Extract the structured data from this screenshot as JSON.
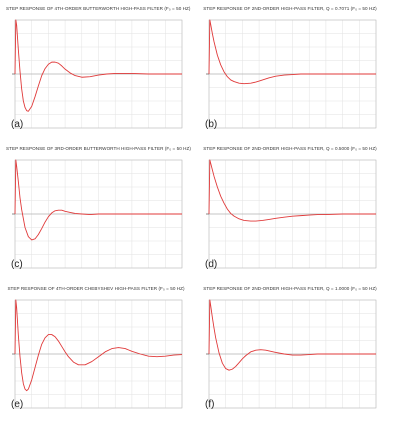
{
  "colors": {
    "curve": "#e03a3a",
    "grid": "#e2e2e2",
    "axis": "#bdbdbd",
    "baseline": "#9a9a9a"
  },
  "chart_data": [
    {
      "type": "line",
      "title": "STEP RESPONSE OF 4TH-ORDER BUTTERWORTH HIGH-PASS FILTER (F₀ = 50 HZ)",
      "label": "(a)",
      "xlabel": "",
      "ylabel": "",
      "ylim": [
        -1,
        1
      ],
      "grid": true,
      "series": [
        {
          "x": [
            0,
            0.5,
            1,
            2,
            3,
            4,
            5,
            6,
            7,
            8,
            10,
            12,
            14,
            16,
            18,
            20,
            22,
            24,
            26,
            28,
            30,
            33,
            36,
            40,
            45,
            50,
            55,
            60,
            70,
            80,
            90,
            100
          ],
          "values": [
            0,
            1.0,
            0.9,
            0.45,
            0.05,
            -0.28,
            -0.5,
            -0.62,
            -0.68,
            -0.69,
            -0.6,
            -0.42,
            -0.22,
            -0.03,
            0.1,
            0.18,
            0.22,
            0.22,
            0.2,
            0.15,
            0.09,
            0.02,
            -0.03,
            -0.06,
            -0.05,
            -0.02,
            0.0,
            0.01,
            0.01,
            0.0,
            0.0,
            0.0
          ]
        }
      ]
    },
    {
      "type": "line",
      "title": "STEP RESPONSE OF 2ND-ORDER HIGH-PASS FILTER, Q = 0.7071 (F₀ = 50 HZ)",
      "label": "(b)",
      "xlabel": "",
      "ylabel": "",
      "ylim": [
        -1,
        1
      ],
      "grid": true,
      "series": [
        {
          "x": [
            0,
            0.5,
            1,
            2,
            3,
            5,
            7,
            9,
            11,
            13,
            15,
            18,
            21,
            25,
            28,
            30,
            33,
            36,
            40,
            45,
            50,
            55,
            60,
            65,
            70,
            80,
            90,
            100
          ],
          "values": [
            0,
            1.0,
            0.92,
            0.75,
            0.6,
            0.35,
            0.17,
            0.04,
            -0.05,
            -0.11,
            -0.14,
            -0.17,
            -0.18,
            -0.17,
            -0.15,
            -0.13,
            -0.1,
            -0.07,
            -0.04,
            -0.02,
            -0.01,
            0.0,
            0.0,
            0.0,
            0.0,
            0.0,
            0.0,
            0.0
          ]
        }
      ]
    },
    {
      "type": "line",
      "title": "STEP RESPONSE OF 3RD-ORDER BUTTERWORTH HIGH-PASS FILTER (F₀ = 50 HZ)",
      "label": "(c)",
      "xlabel": "",
      "ylabel": "",
      "ylim": [
        -1,
        1
      ],
      "grid": true,
      "series": [
        {
          "x": [
            0,
            0.5,
            1,
            2,
            3,
            4,
            6,
            8,
            10,
            12,
            14,
            16,
            18,
            20,
            22,
            24,
            26,
            28,
            30,
            33,
            36,
            40,
            45,
            50,
            55,
            60,
            70,
            80,
            90,
            100
          ],
          "values": [
            0,
            1.0,
            0.88,
            0.6,
            0.3,
            0.08,
            -0.25,
            -0.42,
            -0.48,
            -0.46,
            -0.38,
            -0.27,
            -0.15,
            -0.05,
            0.02,
            0.06,
            0.07,
            0.07,
            0.05,
            0.03,
            0.01,
            0.0,
            -0.01,
            0.0,
            0.0,
            0.0,
            0.0,
            0.0,
            0.0,
            0.0
          ]
        }
      ]
    },
    {
      "type": "line",
      "title": "STEP RESPONSE OF 2ND-ORDER HIGH-PASS FILTER, Q = 0.5000 (F₀ = 50 HZ)",
      "label": "(d)",
      "xlabel": "",
      "ylabel": "",
      "ylim": [
        -1,
        1
      ],
      "grid": true,
      "series": [
        {
          "x": [
            0,
            0.5,
            1,
            2,
            3,
            5,
            7,
            9,
            11,
            13,
            15,
            18,
            21,
            25,
            28,
            32,
            36,
            40,
            45,
            50,
            55,
            60,
            65,
            70,
            80,
            90,
            100
          ],
          "values": [
            0,
            1.0,
            0.94,
            0.82,
            0.7,
            0.5,
            0.33,
            0.2,
            0.09,
            0.01,
            -0.04,
            -0.09,
            -0.12,
            -0.13,
            -0.13,
            -0.12,
            -0.1,
            -0.08,
            -0.06,
            -0.04,
            -0.03,
            -0.02,
            -0.01,
            -0.01,
            0.0,
            0.0,
            0.0
          ]
        }
      ]
    },
    {
      "type": "line",
      "title": "STEP RESPONSE OF 4TH-ORDER CHEBYSHEV HIGH-PASS FILTER (F₀ = 50 HZ)",
      "label": "(e)",
      "xlabel": "",
      "ylabel": "",
      "ylim": [
        -1,
        1
      ],
      "grid": true,
      "series": [
        {
          "x": [
            0,
            0.5,
            1,
            2,
            3,
            4,
            5,
            6,
            7,
            8,
            10,
            12,
            14,
            16,
            18,
            20,
            22,
            24,
            26,
            28,
            30,
            32,
            35,
            38,
            42,
            46,
            50,
            54,
            58,
            62,
            66,
            70,
            75,
            80,
            85,
            90,
            95,
            100
          ],
          "values": [
            0,
            1.0,
            0.85,
            0.35,
            -0.05,
            -0.35,
            -0.55,
            -0.65,
            -0.68,
            -0.65,
            -0.48,
            -0.25,
            -0.02,
            0.18,
            0.3,
            0.36,
            0.36,
            0.32,
            0.24,
            0.14,
            0.04,
            -0.05,
            -0.15,
            -0.2,
            -0.2,
            -0.14,
            -0.05,
            0.04,
            0.1,
            0.12,
            0.1,
            0.05,
            0.0,
            -0.04,
            -0.05,
            -0.04,
            -0.02,
            -0.01
          ]
        }
      ]
    },
    {
      "type": "line",
      "title": "STEP RESPONSE OF 2ND-ORDER HIGH-PASS FILTER, Q = 1.0000 (F₀ = 50 HZ)",
      "label": "(f)",
      "xlabel": "",
      "ylabel": "",
      "ylim": [
        -1,
        1
      ],
      "grid": true,
      "series": [
        {
          "x": [
            0,
            0.5,
            1,
            2,
            3,
            4,
            6,
            8,
            10,
            12,
            14,
            16,
            18,
            20,
            22,
            25,
            28,
            31,
            34,
            37,
            40,
            45,
            50,
            55,
            60,
            65,
            70,
            80,
            90,
            100
          ],
          "values": [
            0,
            1.0,
            0.9,
            0.68,
            0.48,
            0.3,
            0.02,
            -0.17,
            -0.27,
            -0.3,
            -0.28,
            -0.23,
            -0.16,
            -0.09,
            -0.03,
            0.04,
            0.07,
            0.08,
            0.07,
            0.05,
            0.03,
            0.0,
            -0.02,
            -0.02,
            -0.01,
            0.0,
            0.0,
            0.0,
            0.0,
            0.0
          ]
        }
      ]
    }
  ]
}
